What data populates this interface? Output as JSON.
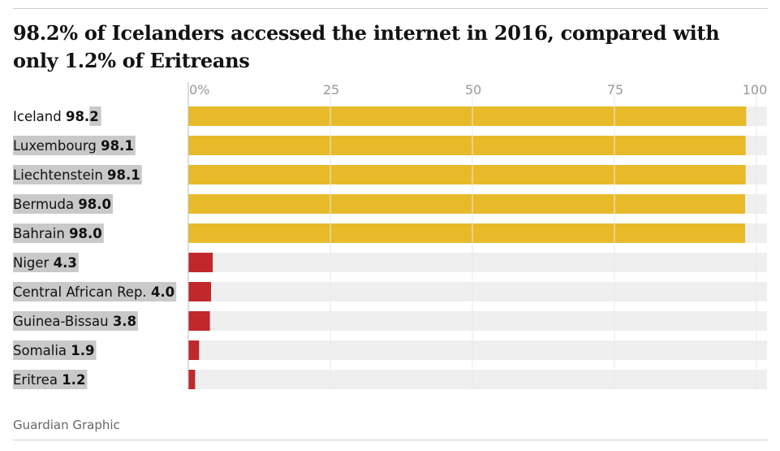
{
  "title": "98.2% of Icelanders accessed the internet in 2016, compared with only 1.2% of Eritreans",
  "source": "Guardian Graphic",
  "colors": {
    "high": "#e8ba2a",
    "low": "#c0282b",
    "track": "#efefef",
    "label_bg": "#c9c9c9",
    "grid": "#e8e8e8",
    "tick_text": "#9a9a9a"
  },
  "chart_data": {
    "type": "bar",
    "orientation": "horizontal",
    "xlim": [
      0,
      100
    ],
    "ticks": [
      {
        "value": 0,
        "label": "0%"
      },
      {
        "value": 25,
        "label": "25"
      },
      {
        "value": 50,
        "label": "50"
      },
      {
        "value": 75,
        "label": "75"
      },
      {
        "value": 100,
        "label": "100"
      }
    ],
    "grid": true,
    "categories": [
      "Iceland",
      "Luxembourg",
      "Liechtenstein",
      "Bermuda",
      "Bahrain",
      "Niger",
      "Central African Rep.",
      "Guinea-Bissau",
      "Somalia",
      "Eritrea"
    ],
    "values": [
      98.2,
      98.1,
      98.1,
      98.0,
      98.0,
      4.3,
      4.0,
      3.8,
      1.9,
      1.2
    ],
    "value_labels": [
      "98.2",
      "98.1",
      "98.1",
      "98.0",
      "98.0",
      "4.3",
      "4.0",
      "3.8",
      "1.9",
      "1.2"
    ],
    "groups": [
      "high",
      "high",
      "high",
      "high",
      "high",
      "low",
      "low",
      "low",
      "low",
      "low"
    ]
  }
}
